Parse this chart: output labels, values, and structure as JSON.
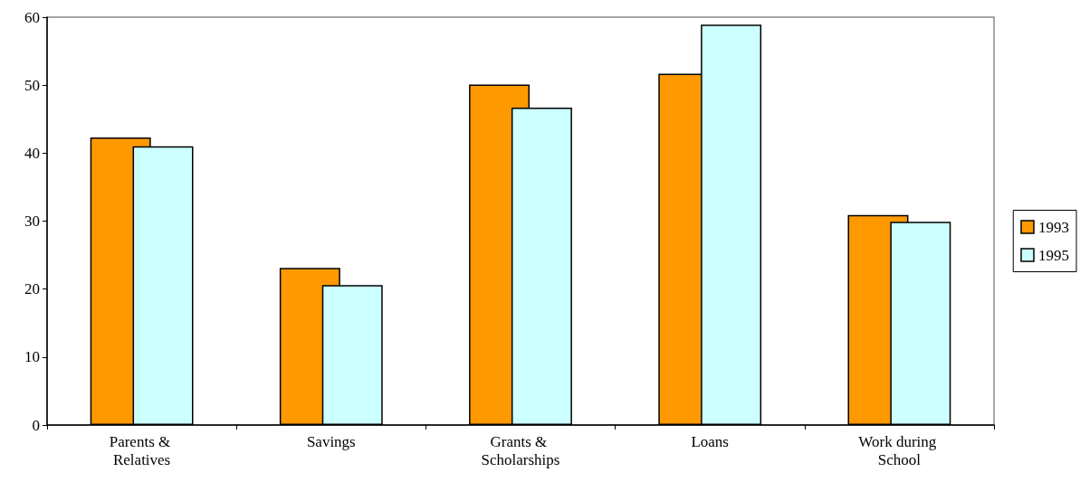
{
  "chart_data": {
    "type": "bar",
    "categories": [
      "Parents & Relatives",
      "Savings",
      "Grants & Scholarships",
      "Loans",
      "Work during School"
    ],
    "series": [
      {
        "name": "1993",
        "color": "#ff9900",
        "values": [
          42.3,
          23.1,
          50.1,
          51.7,
          30.9
        ]
      },
      {
        "name": "1995",
        "color": "#ccffff",
        "values": [
          41.0,
          20.6,
          46.7,
          58.9,
          29.9
        ]
      }
    ],
    "ylim": [
      0,
      60
    ],
    "yticks": [
      0,
      10,
      20,
      30,
      40,
      50,
      60
    ],
    "grid": false,
    "legend": "right"
  }
}
